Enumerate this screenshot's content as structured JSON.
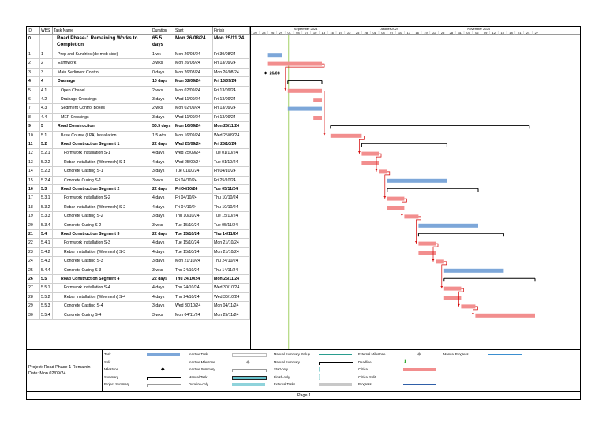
{
  "headers": {
    "id": "ID",
    "wbs": "WBS",
    "name": "Task Name",
    "duration": "Duration",
    "start": "Start",
    "finish": "Finish"
  },
  "timescale": {
    "months": [
      "September 2024",
      "October 2024",
      "November 2024"
    ],
    "days": [
      "20",
      "23",
      "26",
      "29",
      "01",
      "04",
      "07",
      "10",
      "13",
      "16",
      "19",
      "22",
      "25",
      "28",
      "01",
      "04",
      "07",
      "10",
      "13",
      "16",
      "19",
      "22",
      "25",
      "28",
      "31",
      "03",
      "06",
      "09",
      "12",
      "15",
      "18",
      "21",
      "24",
      "27"
    ]
  },
  "rows": [
    {
      "id": "0",
      "wbs": "",
      "name": "Road Phase-1 Remaining Works to Completion",
      "duration": "65.5 days",
      "start": "Mon 26/08/24",
      "finish": "Mon 25/11/24"
    },
    {
      "id": "1",
      "wbs": "1",
      "name": "Prep and Sundries (de-mob side)",
      "duration": "1 wk",
      "start": "Mon 26/08/24",
      "finish": "Fri 30/08/24"
    },
    {
      "id": "2",
      "wbs": "2",
      "name": "Earthwork",
      "duration": "3 wks",
      "start": "Mon 26/08/24",
      "finish": "Fri 13/09/24"
    },
    {
      "id": "3",
      "wbs": "3",
      "name": "Main Sediment Control",
      "duration": "0 days",
      "start": "Mon 26/08/24",
      "finish": "Mon 26/08/24"
    },
    {
      "id": "4",
      "wbs": "4",
      "name": "Drainage",
      "duration": "10 days",
      "start": "Mon 02/09/24",
      "finish": "Fri 13/09/24"
    },
    {
      "id": "5",
      "wbs": "4.1",
      "name": "Open Chanel",
      "duration": "2 wks",
      "start": "Mon 02/09/24",
      "finish": "Fri 13/09/24"
    },
    {
      "id": "6",
      "wbs": "4.2",
      "name": "Drainage Crossings",
      "duration": "3 days",
      "start": "Wed 11/09/24",
      "finish": "Fri 13/09/24"
    },
    {
      "id": "7",
      "wbs": "4.3",
      "name": "Sediment Control Boxes",
      "duration": "2 wks",
      "start": "Mon 02/09/24",
      "finish": "Fri 13/09/24"
    },
    {
      "id": "8",
      "wbs": "4.4",
      "name": "MEP Crossings",
      "duration": "3 days",
      "start": "Wed 11/09/24",
      "finish": "Fri 13/09/24"
    },
    {
      "id": "9",
      "wbs": "5",
      "name": "Road Construction",
      "duration": "50.5 days",
      "start": "Mon 16/09/24",
      "finish": "Mon 25/11/24"
    },
    {
      "id": "10",
      "wbs": "5.1",
      "name": "Base Course (LPA) Installation",
      "duration": "1.5 wks",
      "start": "Mon 16/09/24",
      "finish": "Wed 25/09/24"
    },
    {
      "id": "11",
      "wbs": "5.2",
      "name": "Road Construction Segment 1",
      "duration": "22 days",
      "start": "Wed 25/09/24",
      "finish": "Fri 25/10/24"
    },
    {
      "id": "12",
      "wbs": "5.2.1",
      "name": "Formwork Installation S-1",
      "duration": "4 days",
      "start": "Wed 25/09/24",
      "finish": "Tue 01/10/24"
    },
    {
      "id": "13",
      "wbs": "5.2.2",
      "name": "Rebar Installation (Wiremesh) S-1",
      "duration": "4 days",
      "start": "Wed 25/09/24",
      "finish": "Tue 01/10/24"
    },
    {
      "id": "14",
      "wbs": "5.2.3",
      "name": "Concrete Casting S-1",
      "duration": "3 days",
      "start": "Tue 01/10/24",
      "finish": "Fri 04/10/24"
    },
    {
      "id": "15",
      "wbs": "5.2.4",
      "name": "Concrete Curing S-1",
      "duration": "3 wks",
      "start": "Fri 04/10/24",
      "finish": "Fri 25/10/24"
    },
    {
      "id": "16",
      "wbs": "5.3",
      "name": "Road Construction Segment 2",
      "duration": "22 days",
      "start": "Fri 04/10/24",
      "finish": "Tue 05/11/24"
    },
    {
      "id": "17",
      "wbs": "5.3.1",
      "name": "Formwork Installation S-2",
      "duration": "4 days",
      "start": "Fri 04/10/24",
      "finish": "Thu 10/10/24"
    },
    {
      "id": "18",
      "wbs": "5.3.2",
      "name": "Rebar Installation (Wiremesh) S-2",
      "duration": "4 days",
      "start": "Fri 04/10/24",
      "finish": "Thu 10/10/24"
    },
    {
      "id": "19",
      "wbs": "5.3.3",
      "name": "Concrete Casting S-2",
      "duration": "3 days",
      "start": "Thu 10/10/24",
      "finish": "Tue 15/10/24"
    },
    {
      "id": "20",
      "wbs": "5.3.4",
      "name": "Concrete Curing S-2",
      "duration": "3 wks",
      "start": "Tue 15/10/24",
      "finish": "Tue 05/11/24"
    },
    {
      "id": "21",
      "wbs": "5.4",
      "name": "Road Construction Segment 3",
      "duration": "22 days",
      "start": "Tue 15/10/24",
      "finish": "Thu 14/11/24"
    },
    {
      "id": "22",
      "wbs": "5.4.1",
      "name": "Formwork Installation S-3",
      "duration": "4 days",
      "start": "Tue 15/10/24",
      "finish": "Mon 21/10/24"
    },
    {
      "id": "23",
      "wbs": "5.4.2",
      "name": "Rebar Installation (Wiremesh) S-3",
      "duration": "4 days",
      "start": "Tue 15/10/24",
      "finish": "Mon 21/10/24"
    },
    {
      "id": "24",
      "wbs": "5.4.3",
      "name": "Concrete Casting S-3",
      "duration": "3 days",
      "start": "Mon 21/10/24",
      "finish": "Thu 24/10/24"
    },
    {
      "id": "25",
      "wbs": "5.4.4",
      "name": "Concrete Curing S-3",
      "duration": "3 wks",
      "start": "Thu 24/10/24",
      "finish": "Thu 14/11/24"
    },
    {
      "id": "26",
      "wbs": "5.5",
      "name": "Road Construction Segment 4",
      "duration": "22 days",
      "start": "Thu 24/10/24",
      "finish": "Mon 25/11/24"
    },
    {
      "id": "27",
      "wbs": "5.5.1",
      "name": "Formwork Installation S-4",
      "duration": "4 days",
      "start": "Thu 24/10/24",
      "finish": "Wed 30/10/24"
    },
    {
      "id": "28",
      "wbs": "5.5.2",
      "name": "Rebar Installation (Wiremesh) S-4",
      "duration": "4 days",
      "start": "Thu 24/10/24",
      "finish": "Wed 30/10/24"
    },
    {
      "id": "29",
      "wbs": "5.5.3",
      "name": "Concrete Casting S-4",
      "duration": "3 days",
      "start": "Wed 30/10/24",
      "finish": "Mon 04/11/24"
    },
    {
      "id": "30",
      "wbs": "5.5.4",
      "name": "Concrete Curing S-4",
      "duration": "3 wks",
      "start": "Mon 04/11/24",
      "finish": "Mon 25/11/24"
    }
  ],
  "bars": [
    {
      "row": 1,
      "kind": "task",
      "start_day": 6,
      "end_day": 11
    },
    {
      "row": 2,
      "kind": "critical",
      "start_day": 6,
      "end_day": 25
    },
    {
      "row": 3,
      "kind": "milestone",
      "start_day": 6,
      "label": "26/08"
    },
    {
      "row": 4,
      "kind": "summary",
      "start_day": 13,
      "end_day": 25
    },
    {
      "row": 5,
      "kind": "critical",
      "start_day": 13,
      "end_day": 25
    },
    {
      "row": 6,
      "kind": "critical",
      "start_day": 22,
      "end_day": 25
    },
    {
      "row": 7,
      "kind": "task",
      "start_day": 13,
      "end_day": 25
    },
    {
      "row": 8,
      "kind": "critical",
      "start_day": 22,
      "end_day": 25
    },
    {
      "row": 9,
      "kind": "summary",
      "start_day": 28,
      "end_day": 98
    },
    {
      "row": 10,
      "kind": "critical",
      "start_day": 28,
      "end_day": 39
    },
    {
      "row": 11,
      "kind": "summary",
      "start_day": 39,
      "end_day": 69
    },
    {
      "row": 12,
      "kind": "critical",
      "start_day": 39,
      "end_day": 45
    },
    {
      "row": 13,
      "kind": "critical",
      "start_day": 39,
      "end_day": 45
    },
    {
      "row": 14,
      "kind": "critical",
      "start_day": 45,
      "end_day": 48
    },
    {
      "row": 15,
      "kind": "task",
      "start_day": 48,
      "end_day": 69
    },
    {
      "row": 16,
      "kind": "summary",
      "start_day": 48,
      "end_day": 80
    },
    {
      "row": 17,
      "kind": "critical",
      "start_day": 48,
      "end_day": 54
    },
    {
      "row": 18,
      "kind": "critical",
      "start_day": 48,
      "end_day": 54
    },
    {
      "row": 19,
      "kind": "critical",
      "start_day": 54,
      "end_day": 59
    },
    {
      "row": 20,
      "kind": "task",
      "start_day": 59,
      "end_day": 80
    },
    {
      "row": 21,
      "kind": "summary",
      "start_day": 59,
      "end_day": 89
    },
    {
      "row": 22,
      "kind": "critical",
      "start_day": 59,
      "end_day": 65
    },
    {
      "row": 23,
      "kind": "critical",
      "start_day": 59,
      "end_day": 65
    },
    {
      "row": 24,
      "kind": "critical",
      "start_day": 65,
      "end_day": 68
    },
    {
      "row": 25,
      "kind": "task",
      "start_day": 68,
      "end_day": 89
    },
    {
      "row": 26,
      "kind": "summary",
      "start_day": 68,
      "end_day": 100
    },
    {
      "row": 27,
      "kind": "critical",
      "start_day": 68,
      "end_day": 74
    },
    {
      "row": 28,
      "kind": "critical",
      "start_day": 68,
      "end_day": 74
    },
    {
      "row": 29,
      "kind": "critical",
      "start_day": 74,
      "end_day": 79
    },
    {
      "row": 30,
      "kind": "critical",
      "start_day": 79,
      "end_day": 100
    }
  ],
  "legend": {
    "project_line1": "Project: Road Phase-1 Remainin",
    "project_line2": "Date: Mon 02/09/24",
    "col1": [
      "Task",
      "Split",
      "Milestone",
      "Summary",
      "Project Summary"
    ],
    "col2": [
      "Inactive Task",
      "Inactive Milestone",
      "Inactive Summary",
      "Manual Task",
      "Duration-only"
    ],
    "col3": [
      "Manual Summary Rollup",
      "Manual Summary",
      "Start-only",
      "Finish-only",
      "External Tasks"
    ],
    "col4": [
      "External Milestone",
      "Deadline",
      "Critical",
      "Critical Split",
      "Progress"
    ],
    "col5": [
      "Manual Progress"
    ]
  },
  "footer": "Page 1",
  "colors": {
    "task": "#7da7d9",
    "critical": "#f28e8e",
    "summary": "#000000",
    "link": "#d40000",
    "today": "#8dc63f"
  }
}
